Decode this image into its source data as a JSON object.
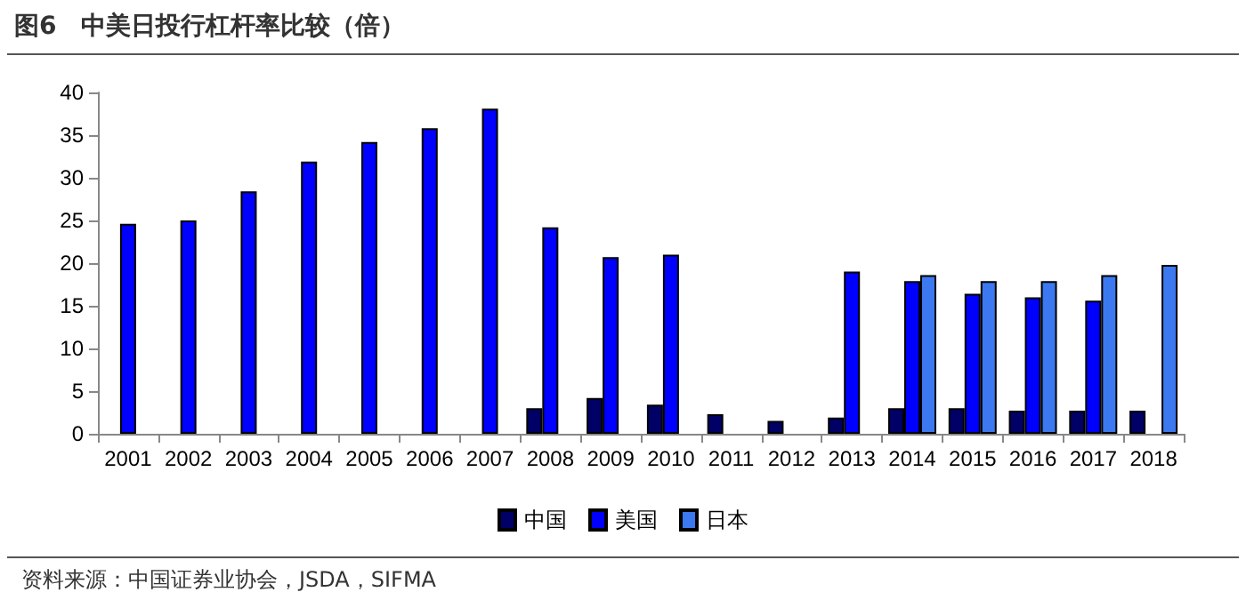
{
  "chart_data": {
    "type": "bar",
    "title": "图6　中美日投行杠杆率比较（倍）",
    "categories": [
      "2001",
      "2002",
      "2003",
      "2004",
      "2005",
      "2006",
      "2007",
      "2008",
      "2009",
      "2010",
      "2011",
      "2012",
      "2013",
      "2014",
      "2015",
      "2016",
      "2017",
      "2018"
    ],
    "series": [
      {
        "name": "中国",
        "color": "#000066",
        "values": [
          null,
          null,
          null,
          null,
          null,
          null,
          null,
          3.0,
          4.2,
          3.4,
          2.3,
          1.5,
          1.9,
          3.0,
          3.0,
          2.7,
          2.7,
          2.7
        ]
      },
      {
        "name": "美国",
        "color": "#0000ff",
        "values": [
          24.6,
          25.0,
          28.4,
          31.9,
          34.2,
          35.8,
          38.1,
          24.2,
          20.7,
          21.0,
          null,
          null,
          19.0,
          17.9,
          16.4,
          16.0,
          15.6,
          null
        ]
      },
      {
        "name": "日本",
        "color": "#3c78f0",
        "values": [
          null,
          null,
          null,
          null,
          null,
          null,
          null,
          null,
          null,
          null,
          null,
          null,
          null,
          18.6,
          17.9,
          17.9,
          18.6,
          19.8
        ]
      }
    ],
    "ylim": [
      0,
      40
    ],
    "yticks": [
      0,
      5,
      10,
      15,
      20,
      25,
      30,
      35,
      40
    ],
    "grid": false,
    "legend": "bottom",
    "annotations": [
      "资料来源：中国证券业协会，JSDA，SIFMA"
    ]
  }
}
